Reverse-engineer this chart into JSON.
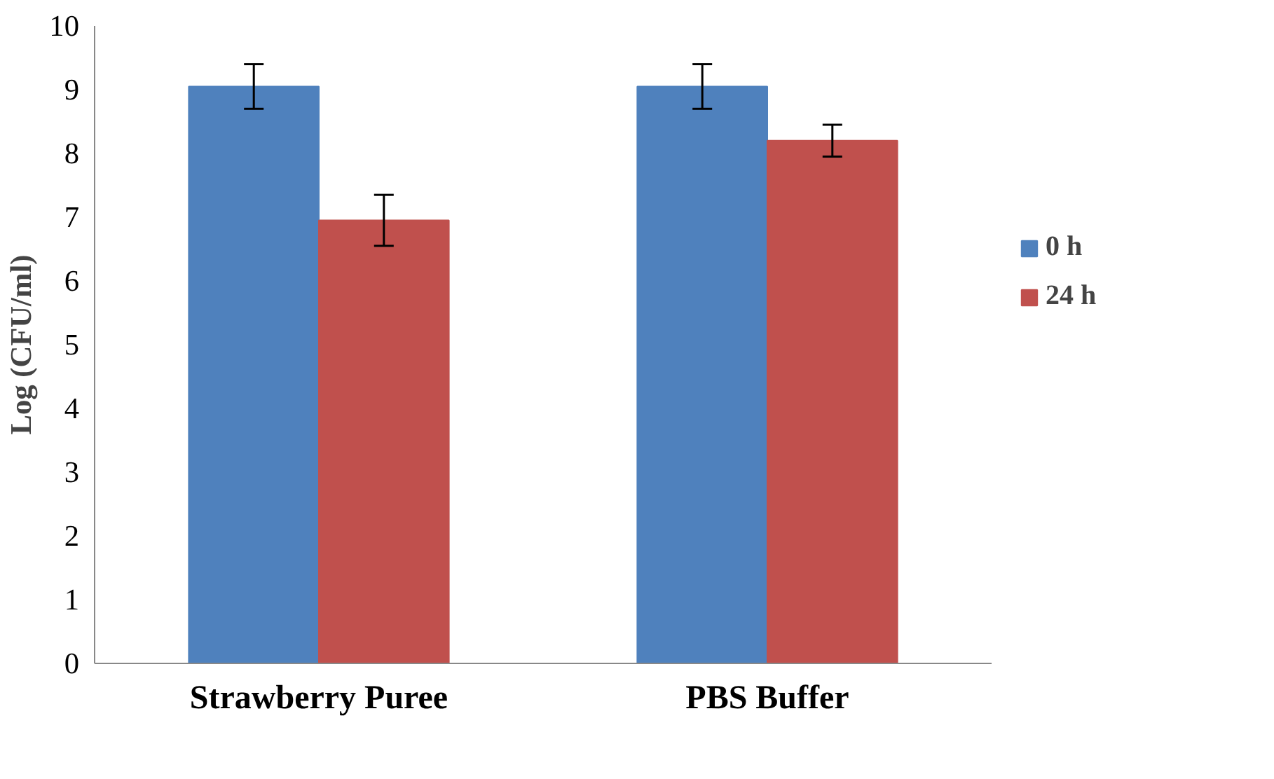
{
  "chart_data": {
    "type": "bar",
    "ylabel": "Log (CFU/ml)",
    "categories": [
      "Strawberry Puree",
      "PBS Buffer"
    ],
    "series": [
      {
        "name": "0 h",
        "color": "#4f81bd",
        "values": [
          9.05,
          9.05
        ],
        "errors": [
          0.35,
          0.35
        ]
      },
      {
        "name": "24 h",
        "color": "#c0504d",
        "values": [
          6.95,
          8.2
        ],
        "errors": [
          0.4,
          0.25
        ]
      }
    ],
    "ylim": [
      0,
      10
    ],
    "yticks": [
      0,
      1,
      2,
      3,
      4,
      5,
      6,
      7,
      8,
      9,
      10
    ],
    "grid": false,
    "legend": "right"
  }
}
